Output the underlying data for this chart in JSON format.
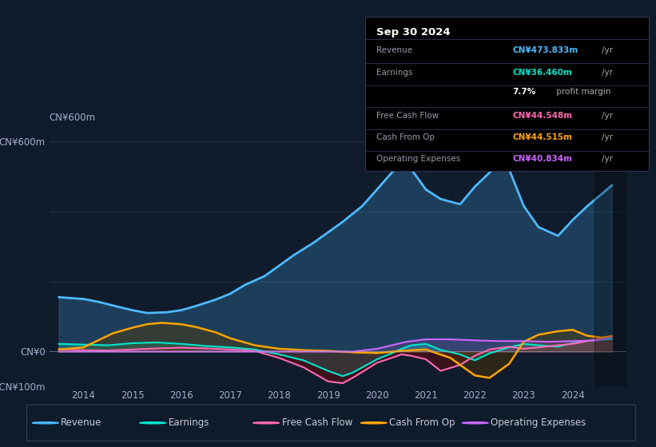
{
  "bg_color": "#0d1b2a",
  "chart_bg": "#101c2c",
  "title_box_bg": "#000000",
  "ylim": [
    -100,
    620
  ],
  "xlim": [
    2013.3,
    2025.1
  ],
  "xticks": [
    2014,
    2015,
    2016,
    2017,
    2018,
    2019,
    2020,
    2021,
    2022,
    2023,
    2024
  ],
  "yticks": [
    -100,
    0,
    600
  ],
  "ytick_labels": [
    "-CN¥100m",
    "CN¥0",
    "CN¥600m"
  ],
  "y600m_label": "CN¥600m",
  "info_date": "Sep 30 2024",
  "info_rows": [
    {
      "label": "Revenue",
      "value": "CN¥473.833m",
      "unit": "/yr",
      "value_color": "#4db8ff"
    },
    {
      "label": "Earnings",
      "value": "CN¥36.460m",
      "unit": "/yr",
      "value_color": "#00e5cc"
    },
    {
      "label": "",
      "value": "7.7%",
      "unit": " profit margin",
      "value_color": "#ffffff"
    },
    {
      "label": "Free Cash Flow",
      "value": "CN¥44.548m",
      "unit": "/yr",
      "value_color": "#ff69b4"
    },
    {
      "label": "Cash From Op",
      "value": "CN¥44.515m",
      "unit": "/yr",
      "value_color": "#ffa500"
    },
    {
      "label": "Operating Expenses",
      "value": "CN¥40.834m",
      "unit": "/yr",
      "value_color": "#cc66ff"
    }
  ],
  "legend": [
    {
      "label": "Revenue",
      "color": "#4db8ff"
    },
    {
      "label": "Earnings",
      "color": "#00e5cc"
    },
    {
      "label": "Free Cash Flow",
      "color": "#ff69b4"
    },
    {
      "label": "Cash From Op",
      "color": "#ffa500"
    },
    {
      "label": "Operating Expenses",
      "color": "#cc66ff"
    }
  ],
  "revenue": {
    "color": "#4db8ff",
    "fill_color": "#4db8ff",
    "fill_alpha": 0.22,
    "linewidth": 2.0,
    "x": [
      2013.5,
      2014.0,
      2014.3,
      2014.7,
      2015.0,
      2015.3,
      2015.7,
      2016.0,
      2016.3,
      2016.7,
      2017.0,
      2017.3,
      2017.7,
      2018.0,
      2018.3,
      2018.7,
      2019.0,
      2019.3,
      2019.7,
      2020.0,
      2020.3,
      2020.5,
      2020.7,
      2021.0,
      2021.3,
      2021.7,
      2022.0,
      2022.3,
      2022.5,
      2022.7,
      2023.0,
      2023.3,
      2023.7,
      2024.0,
      2024.3,
      2024.6,
      2024.8
    ],
    "y": [
      155,
      150,
      142,
      128,
      118,
      110,
      112,
      118,
      130,
      148,
      165,
      190,
      215,
      245,
      275,
      310,
      340,
      370,
      415,
      462,
      510,
      535,
      520,
      462,
      435,
      420,
      470,
      510,
      545,
      520,
      415,
      355,
      330,
      375,
      415,
      450,
      474
    ]
  },
  "earnings": {
    "color": "#00e5cc",
    "fill_color": "#00e5cc",
    "fill_alpha": 0.25,
    "linewidth": 1.5,
    "x": [
      2013.5,
      2014.0,
      2014.5,
      2015.0,
      2015.5,
      2016.0,
      2016.5,
      2017.0,
      2017.5,
      2018.0,
      2018.5,
      2019.0,
      2019.3,
      2019.5,
      2019.7,
      2020.0,
      2020.3,
      2020.5,
      2020.7,
      2021.0,
      2021.3,
      2021.7,
      2022.0,
      2022.3,
      2022.7,
      2023.0,
      2023.3,
      2023.7,
      2024.0,
      2024.3,
      2024.6,
      2024.8
    ],
    "y": [
      22,
      20,
      18,
      24,
      26,
      22,
      16,
      12,
      6,
      -8,
      -25,
      -55,
      -70,
      -60,
      -45,
      -22,
      -5,
      8,
      18,
      22,
      5,
      -8,
      -25,
      -5,
      12,
      22,
      18,
      14,
      24,
      30,
      34,
      36
    ]
  },
  "free_cash_flow": {
    "color": "#ff69b4",
    "fill_color": "#8b0000",
    "fill_alpha": 0.35,
    "linewidth": 1.5,
    "x": [
      2013.5,
      2014.0,
      2014.5,
      2015.0,
      2015.5,
      2016.0,
      2016.5,
      2017.0,
      2017.5,
      2018.0,
      2018.5,
      2019.0,
      2019.3,
      2019.5,
      2019.7,
      2020.0,
      2020.3,
      2020.5,
      2020.7,
      2021.0,
      2021.3,
      2021.7,
      2022.0,
      2022.3,
      2022.7,
      2023.0,
      2023.3,
      2023.7,
      2024.0,
      2024.3,
      2024.6,
      2024.8
    ],
    "y": [
      6,
      4,
      3,
      6,
      9,
      11,
      9,
      6,
      2,
      -18,
      -45,
      -85,
      -90,
      -75,
      -58,
      -32,
      -18,
      -8,
      -12,
      -22,
      -55,
      -38,
      -12,
      6,
      14,
      8,
      12,
      18,
      22,
      30,
      38,
      44
    ]
  },
  "cash_from_op": {
    "color": "#ffa500",
    "fill_color": "#5a3a00",
    "fill_alpha": 0.4,
    "linewidth": 1.8,
    "x": [
      2013.5,
      2014.0,
      2014.3,
      2014.6,
      2015.0,
      2015.3,
      2015.6,
      2016.0,
      2016.3,
      2016.7,
      2017.0,
      2017.5,
      2018.0,
      2018.5,
      2019.0,
      2019.5,
      2020.0,
      2020.5,
      2021.0,
      2021.5,
      2022.0,
      2022.3,
      2022.7,
      2023.0,
      2023.3,
      2023.7,
      2024.0,
      2024.3,
      2024.6,
      2024.8
    ],
    "y": [
      6,
      12,
      32,
      52,
      68,
      78,
      82,
      78,
      70,
      55,
      38,
      18,
      8,
      4,
      2,
      -2,
      -4,
      2,
      6,
      -18,
      -68,
      -75,
      -35,
      28,
      48,
      58,
      62,
      45,
      40,
      44
    ]
  },
  "operating_expenses": {
    "color": "#cc66ff",
    "fill_color": "#cc66ff",
    "fill_alpha": 0.15,
    "linewidth": 1.5,
    "x": [
      2013.5,
      2014.0,
      2014.5,
      2015.0,
      2015.5,
      2016.0,
      2016.5,
      2017.0,
      2017.5,
      2018.0,
      2018.5,
      2019.0,
      2019.5,
      2020.0,
      2020.3,
      2020.6,
      2021.0,
      2021.5,
      2022.0,
      2022.5,
      2023.0,
      2023.5,
      2024.0,
      2024.5,
      2024.8
    ],
    "y": [
      0,
      0,
      0,
      0,
      0,
      0,
      0,
      0,
      0,
      0,
      0,
      0,
      0,
      8,
      18,
      28,
      35,
      35,
      32,
      30,
      30,
      28,
      30,
      32,
      41
    ]
  }
}
